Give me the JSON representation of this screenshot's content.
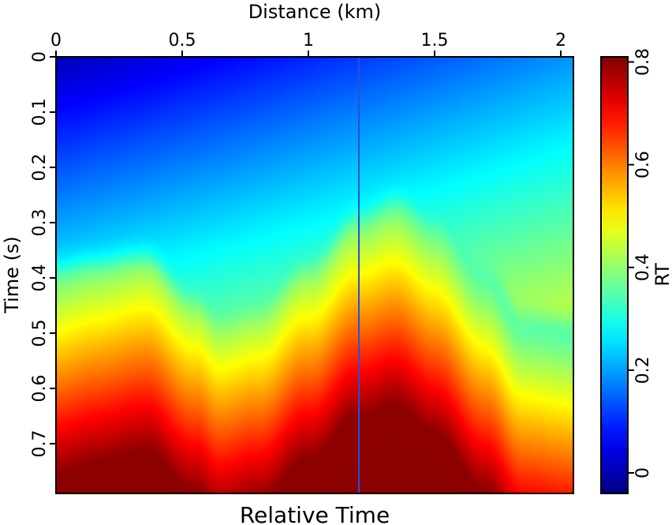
{
  "chart_data": {
    "type": "heatmap",
    "title": "Relative Time",
    "xlabel": "Distance (km)",
    "ylabel": "Time (s)",
    "colorbar_label": "RT",
    "xlim": [
      0,
      2.05
    ],
    "ylim": [
      0,
      0.79
    ],
    "y_reversed": true,
    "x_axis_position": "top",
    "x_ticks": [
      0,
      0.5,
      1,
      1.5,
      2
    ],
    "x_tick_labels": [
      "0",
      "0.5",
      "1",
      "1.5",
      "2"
    ],
    "y_ticks": [
      0,
      0.1,
      0.2,
      0.3,
      0.4,
      0.5,
      0.6,
      0.7
    ],
    "y_tick_labels": [
      "0",
      "0.1",
      "0.2",
      "0.3",
      "0.4",
      "0.5",
      "0.6",
      "0.7"
    ],
    "colorbar_range": [
      -0.04,
      0.81
    ],
    "colorbar_ticks": [
      0,
      0.2,
      0.4,
      0.6,
      0.8
    ],
    "colorbar_tick_labels": [
      "0",
      "0.2",
      "0.4",
      "0.6",
      "0.8"
    ],
    "colormap": "jet",
    "grid": false,
    "vertical_line_x": 1.2,
    "vertical_line_color": "#2a4fd6",
    "boundary_profile": {
      "x": [
        0,
        0.15,
        0.35,
        0.55,
        0.65,
        0.8,
        1.0,
        1.2,
        1.35,
        1.5,
        1.7,
        1.85,
        2.05
      ],
      "t": [
        0.38,
        0.37,
        0.36,
        0.44,
        0.48,
        0.46,
        0.38,
        0.29,
        0.26,
        0.3,
        0.39,
        0.47,
        0.48
      ]
    },
    "value_range": [
      0,
      0.8
    ]
  }
}
